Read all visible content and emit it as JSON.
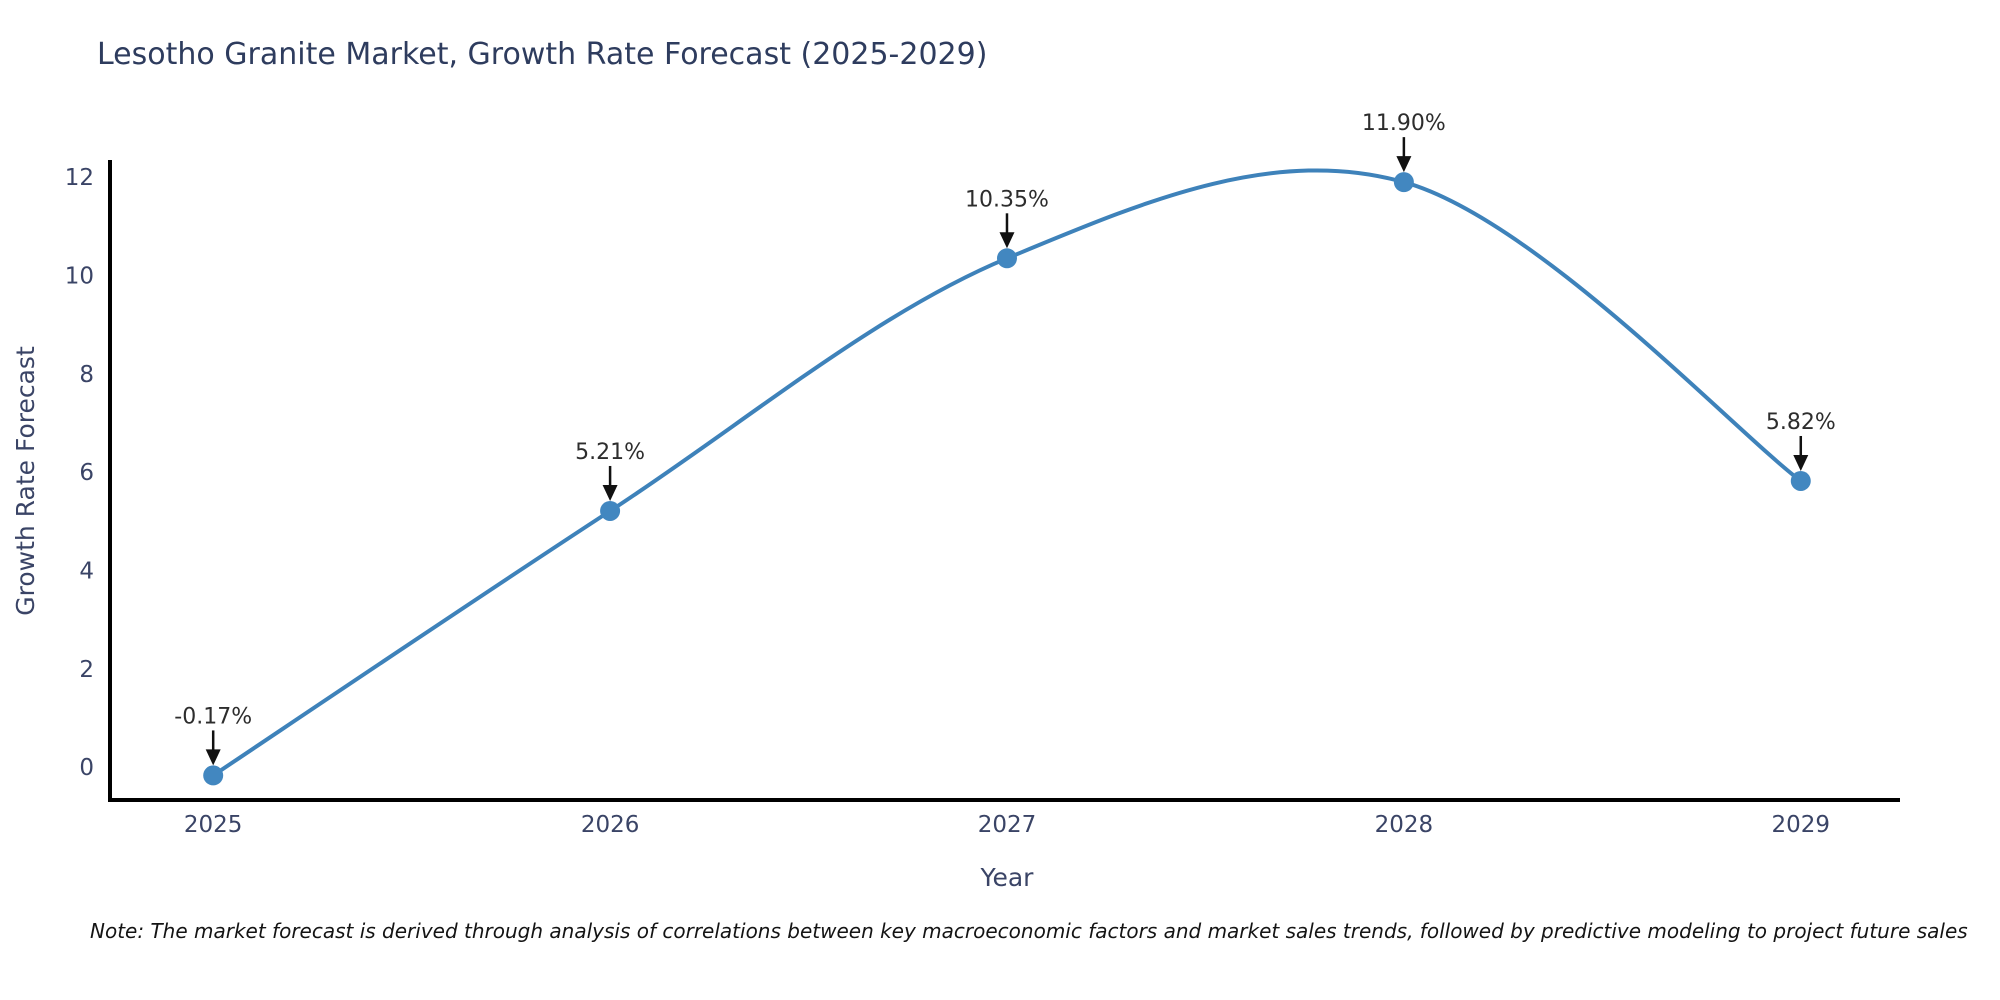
{
  "title": "Lesotho Granite Market, Growth Rate Forecast (2025-2029)",
  "note": "Note: The market forecast is derived through analysis of correlations between key macroeconomic factors and market sales trends, followed by predictive modeling to project future sales",
  "chart_data": {
    "type": "line",
    "title": "Lesotho Granite Market, Growth Rate Forecast (2025-2029)",
    "xlabel": "Year",
    "ylabel": "Growth Rate Forecast",
    "x": [
      2025,
      2026,
      2027,
      2028,
      2029
    ],
    "values": [
      -0.17,
      5.21,
      10.35,
      11.9,
      5.82
    ],
    "point_labels": [
      "-0.17%",
      "5.21%",
      "10.35%",
      "11.90%",
      "5.82%"
    ],
    "xtick_labels": [
      "2025",
      "2026",
      "2027",
      "2028",
      "2029"
    ],
    "yticks": [
      0,
      2,
      4,
      6,
      8,
      10,
      12
    ],
    "xlim": [
      2024.74,
      2029.25
    ],
    "ylim": [
      -0.67,
      12.35
    ],
    "grid": false,
    "legend": null,
    "smooth_spline": true,
    "line_color": "#3e82ba",
    "marker_color": "#4287c0",
    "annotation_arrow_color": "#111111"
  },
  "colors": {
    "title_text": "#2e3c5e",
    "tick_text": "#3a4466",
    "axis_label_text": "#3a4466",
    "annotation_text": "#2d2d2d",
    "note_text": "#141414",
    "spine": "#000000",
    "background": "#ffffff"
  }
}
